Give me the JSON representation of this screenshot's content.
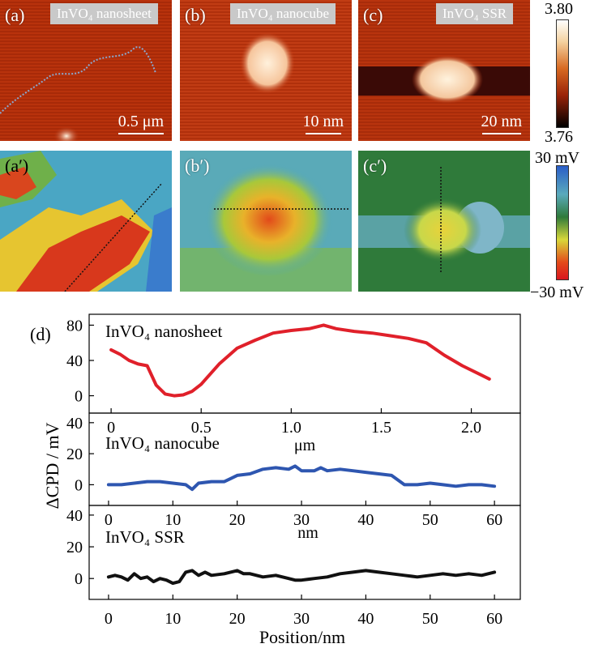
{
  "topo_panels": [
    {
      "label": "(a)",
      "material": "InVO₄ nanosheet",
      "scale_bar": "0.5 μm"
    },
    {
      "label": "(b)",
      "material": "InVO₄ nanocube",
      "scale_bar": "10 nm"
    },
    {
      "label": "(c)",
      "material": "InVO₄ SSR",
      "scale_bar": "20 nm"
    }
  ],
  "kpfm_panels": [
    {
      "label": "(a′)"
    },
    {
      "label": "(b′)"
    },
    {
      "label": "(c′)"
    }
  ],
  "height_colorbar": {
    "max": "3.80",
    "min": "3.76"
  },
  "cpd_colorbar": {
    "max": "30 mV",
    "min": "−30 mV"
  },
  "colors": {
    "nanosheet": "#e0202a",
    "nanocube": "#2e56b0",
    "ssr": "#111111"
  },
  "profile_figure": {
    "label": "(d)",
    "ylabel": "ΔCPD / mV",
    "xlabel": "Position/nm"
  },
  "chart_data": [
    {
      "type": "line",
      "title": "InVO₄ nanosheet",
      "xlabel": "μm",
      "xlim": [
        -0.05,
        2.2
      ],
      "ylim": [
        -5,
        85
      ],
      "xticks": [
        "0",
        "0.5",
        "1.0",
        "1.5",
        "2.0"
      ],
      "yticks": [
        "0",
        "40",
        "80"
      ],
      "series": [
        {
          "name": "InVO₄ nanosheet",
          "x": [
            0,
            0.05,
            0.1,
            0.15,
            0.2,
            0.25,
            0.3,
            0.35,
            0.4,
            0.45,
            0.5,
            0.6,
            0.7,
            0.8,
            0.9,
            1.0,
            1.1,
            1.18,
            1.25,
            1.35,
            1.45,
            1.55,
            1.65,
            1.75,
            1.85,
            1.95,
            2.05,
            2.1
          ],
          "values": [
            52,
            47,
            40,
            36,
            34,
            12,
            2,
            0,
            1,
            5,
            13,
            36,
            54,
            63,
            71,
            74,
            76,
            80,
            76,
            73,
            71,
            68,
            65,
            60,
            46,
            34,
            24,
            19
          ]
        }
      ]
    },
    {
      "type": "line",
      "title": "InVO₄ nanocube",
      "xlabel": "nm",
      "xlim": [
        -1,
        62
      ],
      "ylim": [
        -5,
        42
      ],
      "xticks": [
        "0",
        "10",
        "20",
        "30",
        "40",
        "50",
        "60"
      ],
      "yticks": [
        "0",
        "20",
        "40"
      ],
      "series": [
        {
          "name": "InVO₄ nanocube",
          "x": [
            0,
            2,
            4,
            6,
            8,
            10,
            12,
            13,
            14,
            16,
            18,
            19,
            20,
            22,
            24,
            26,
            28,
            29,
            30,
            32,
            33,
            34,
            36,
            38,
            40,
            42,
            44,
            46,
            48,
            50,
            52,
            54,
            56,
            58,
            60
          ],
          "values": [
            0,
            0,
            1,
            2,
            2,
            1,
            0,
            -3,
            1,
            2,
            2,
            4,
            6,
            7,
            10,
            11,
            10,
            12,
            9,
            9,
            11,
            9,
            10,
            9,
            8,
            7,
            6,
            0,
            0,
            1,
            0,
            -1,
            0,
            0,
            -1
          ]
        }
      ]
    },
    {
      "type": "line",
      "title": "InVO₄ SSR",
      "xlabel": "Position/nm",
      "xlim": [
        -1,
        62
      ],
      "ylim": [
        -5,
        42
      ],
      "xticks": [
        "0",
        "10",
        "20",
        "30",
        "40",
        "50",
        "60"
      ],
      "yticks": [
        "0",
        "20",
        "40"
      ],
      "series": [
        {
          "name": "InVO₄ SSR",
          "x": [
            0,
            1,
            2,
            3,
            4,
            5,
            6,
            7,
            8,
            9,
            10,
            11,
            12,
            13,
            14,
            15,
            16,
            18,
            20,
            21,
            22,
            24,
            26,
            28,
            29,
            30,
            32,
            34,
            36,
            38,
            40,
            42,
            44,
            46,
            48,
            50,
            52,
            54,
            56,
            58,
            60
          ],
          "values": [
            1,
            2,
            1,
            -1,
            3,
            0,
            1,
            -2,
            0,
            -1,
            -3,
            -2,
            4,
            5,
            2,
            4,
            2,
            3,
            5,
            3,
            3,
            1,
            2,
            0,
            -1,
            -1,
            0,
            1,
            3,
            4,
            5,
            4,
            3,
            2,
            1,
            2,
            3,
            2,
            3,
            2,
            4
          ]
        }
      ]
    }
  ]
}
